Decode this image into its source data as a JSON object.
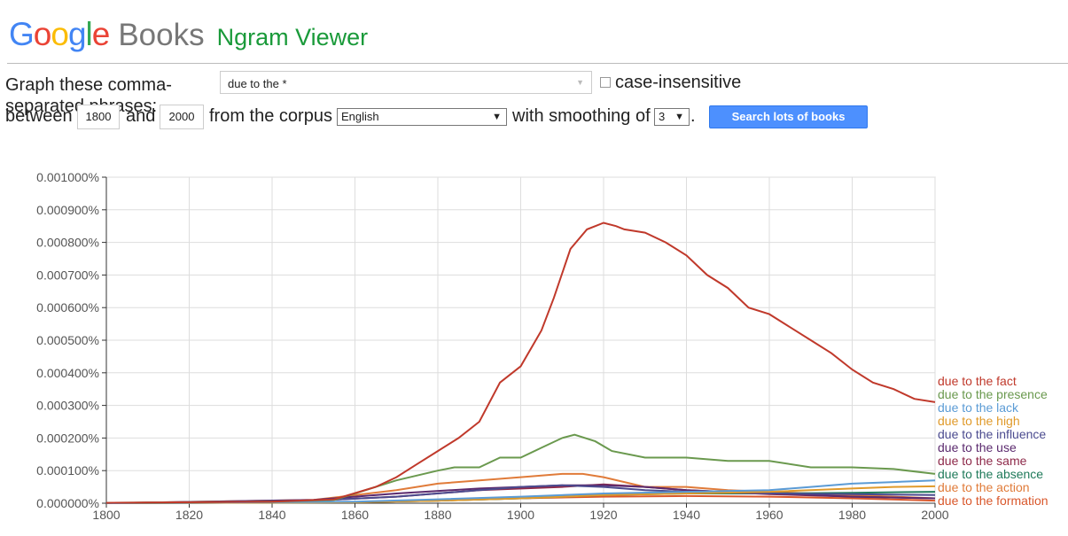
{
  "header": {
    "logo_text": "Google",
    "books": "Books",
    "app_title": "Ngram Viewer"
  },
  "form": {
    "graph_label": "Graph these comma-separated phrases:",
    "phrases_value": "due to the *",
    "case_insensitive_label": "case-insensitive",
    "between_label": "between",
    "start_year": "1800",
    "and_label": "and",
    "end_year": "2000",
    "corpus_label": "from the corpus",
    "corpus_value": "English",
    "smoothing_label": "with smoothing of",
    "smoothing_value": "3",
    "period": ".",
    "search_button": "Search lots of books"
  },
  "colors": {
    "logo": [
      "#4285f4",
      "#ea4335",
      "#fbbc05",
      "#4285f4",
      "#34a853",
      "#ea4335"
    ],
    "button": "#4d90fe",
    "app_title": "#1a9a3a"
  },
  "chart_data": {
    "type": "line",
    "x_ticks": [
      "1800",
      "1820",
      "1840",
      "1860",
      "1880",
      "1900",
      "1920",
      "1940",
      "1960",
      "1980",
      "2000"
    ],
    "y_ticks": [
      "0.000000%",
      "0.000100%",
      "0.000200%",
      "0.000300%",
      "0.000400%",
      "0.000500%",
      "0.000600%",
      "0.000700%",
      "0.000800%",
      "0.000900%",
      "0.001000%"
    ],
    "xlim": [
      1800,
      2000
    ],
    "ylim": [
      0,
      0.001
    ],
    "grid": true,
    "legend_position": "right",
    "series": [
      {
        "name": "due to the fact",
        "color": "#c0392b",
        "points": [
          [
            1800,
            1e-06
          ],
          [
            1840,
            5e-06
          ],
          [
            1855,
            1.2e-05
          ],
          [
            1865,
            5e-05
          ],
          [
            1870,
            8e-05
          ],
          [
            1875,
            0.00012
          ],
          [
            1880,
            0.00016
          ],
          [
            1885,
            0.0002
          ],
          [
            1890,
            0.00025
          ],
          [
            1895,
            0.00037
          ],
          [
            1900,
            0.00042
          ],
          [
            1905,
            0.00053
          ],
          [
            1908,
            0.00063
          ],
          [
            1912,
            0.00078
          ],
          [
            1916,
            0.00084
          ],
          [
            1920,
            0.00086
          ],
          [
            1923,
            0.00085
          ],
          [
            1925,
            0.00084
          ],
          [
            1930,
            0.00083
          ],
          [
            1935,
            0.0008
          ],
          [
            1940,
            0.00076
          ],
          [
            1945,
            0.0007
          ],
          [
            1950,
            0.00066
          ],
          [
            1955,
            0.0006
          ],
          [
            1960,
            0.00058
          ],
          [
            1965,
            0.00054
          ],
          [
            1970,
            0.0005
          ],
          [
            1975,
            0.00046
          ],
          [
            1980,
            0.00041
          ],
          [
            1985,
            0.00037
          ],
          [
            1990,
            0.00035
          ],
          [
            1995,
            0.00032
          ],
          [
            2000,
            0.00031
          ]
        ]
      },
      {
        "name": "due to the presence",
        "color": "#6a994e",
        "points": [
          [
            1800,
            1e-06
          ],
          [
            1840,
            5e-06
          ],
          [
            1855,
            1e-05
          ],
          [
            1860,
            3e-05
          ],
          [
            1870,
            7e-05
          ],
          [
            1880,
            0.0001
          ],
          [
            1884,
            0.00011
          ],
          [
            1890,
            0.00011
          ],
          [
            1895,
            0.00014
          ],
          [
            1900,
            0.00014
          ],
          [
            1905,
            0.00017
          ],
          [
            1910,
            0.0002
          ],
          [
            1913,
            0.00021
          ],
          [
            1918,
            0.00019
          ],
          [
            1922,
            0.00016
          ],
          [
            1930,
            0.00014
          ],
          [
            1940,
            0.00014
          ],
          [
            1950,
            0.00013
          ],
          [
            1960,
            0.00013
          ],
          [
            1970,
            0.00011
          ],
          [
            1980,
            0.00011
          ],
          [
            1990,
            0.000105
          ],
          [
            2000,
            9e-05
          ]
        ]
      },
      {
        "name": "due to the lack",
        "color": "#5b9bd5",
        "points": [
          [
            1800,
            0.0
          ],
          [
            1860,
            5e-06
          ],
          [
            1880,
            1.2e-05
          ],
          [
            1900,
            2e-05
          ],
          [
            1920,
            3e-05
          ],
          [
            1940,
            3.5e-05
          ],
          [
            1960,
            4e-05
          ],
          [
            1970,
            5e-05
          ],
          [
            1980,
            6e-05
          ],
          [
            1990,
            6.5e-05
          ],
          [
            2000,
            7e-05
          ]
        ]
      },
      {
        "name": "due to the high",
        "color": "#e09a2a",
        "points": [
          [
            1800,
            0.0
          ],
          [
            1860,
            3e-06
          ],
          [
            1880,
            8e-06
          ],
          [
            1900,
            1.5e-05
          ],
          [
            1920,
            2.5e-05
          ],
          [
            1940,
            3e-05
          ],
          [
            1960,
            3.5e-05
          ],
          [
            1980,
            4.5e-05
          ],
          [
            1990,
            5e-05
          ],
          [
            2000,
            5.2e-05
          ]
        ]
      },
      {
        "name": "due to the influence",
        "color": "#4b4b8f",
        "points": [
          [
            1800,
            0.0
          ],
          [
            1850,
            8e-06
          ],
          [
            1870,
            2e-05
          ],
          [
            1890,
            4e-05
          ],
          [
            1900,
            5e-05
          ],
          [
            1910,
            5.5e-05
          ],
          [
            1920,
            5e-05
          ],
          [
            1930,
            4e-05
          ],
          [
            1940,
            3.5e-05
          ],
          [
            1960,
            3e-05
          ],
          [
            1980,
            2.8e-05
          ],
          [
            2000,
            2.5e-05
          ]
        ]
      },
      {
        "name": "due to the use",
        "color": "#5b2a6e",
        "points": [
          [
            1800,
            0.0
          ],
          [
            1850,
            1e-05
          ],
          [
            1870,
            3e-05
          ],
          [
            1890,
            4.5e-05
          ],
          [
            1900,
            5e-05
          ],
          [
            1910,
            5.5e-05
          ],
          [
            1920,
            5.5e-05
          ],
          [
            1930,
            5e-05
          ],
          [
            1940,
            4e-05
          ],
          [
            1960,
            3e-05
          ],
          [
            1980,
            2e-05
          ],
          [
            2000,
            1.5e-05
          ]
        ]
      },
      {
        "name": "due to the same",
        "color": "#8e2a4a",
        "points": [
          [
            1800,
            0.0
          ],
          [
            1850,
            8e-06
          ],
          [
            1870,
            2e-05
          ],
          [
            1890,
            4e-05
          ],
          [
            1910,
            5e-05
          ],
          [
            1920,
            5.8e-05
          ],
          [
            1930,
            5e-05
          ],
          [
            1940,
            4e-05
          ],
          [
            1960,
            2.8e-05
          ],
          [
            1980,
            2e-05
          ],
          [
            2000,
            1.5e-05
          ]
        ]
      },
      {
        "name": "due to the absence",
        "color": "#1f7a5a",
        "points": [
          [
            1800,
            0.0
          ],
          [
            1860,
            3e-06
          ],
          [
            1880,
            8e-06
          ],
          [
            1900,
            1.5e-05
          ],
          [
            1920,
            2.5e-05
          ],
          [
            1940,
            3e-05
          ],
          [
            1960,
            3e-05
          ],
          [
            1980,
            3.2e-05
          ],
          [
            2000,
            3.5e-05
          ]
        ]
      },
      {
        "name": "due to the action",
        "color": "#e07b39",
        "points": [
          [
            1800,
            0.0
          ],
          [
            1850,
            1e-05
          ],
          [
            1870,
            4e-05
          ],
          [
            1880,
            6e-05
          ],
          [
            1890,
            7e-05
          ],
          [
            1900,
            8e-05
          ],
          [
            1910,
            9e-05
          ],
          [
            1915,
            9e-05
          ],
          [
            1920,
            8e-05
          ],
          [
            1930,
            5e-05
          ],
          [
            1940,
            5e-05
          ],
          [
            1950,
            4e-05
          ],
          [
            1970,
            3e-05
          ],
          [
            1990,
            2e-05
          ],
          [
            2000,
            1.5e-05
          ]
        ]
      },
      {
        "name": "due to the formation",
        "color": "#d9572b",
        "points": [
          [
            1800,
            0.0
          ],
          [
            1860,
            3e-06
          ],
          [
            1880,
            8e-06
          ],
          [
            1900,
            1.5e-05
          ],
          [
            1920,
            2e-05
          ],
          [
            1940,
            2.2e-05
          ],
          [
            1960,
            2e-05
          ],
          [
            1980,
            1.5e-05
          ],
          [
            2000,
            8e-06
          ]
        ]
      }
    ]
  }
}
